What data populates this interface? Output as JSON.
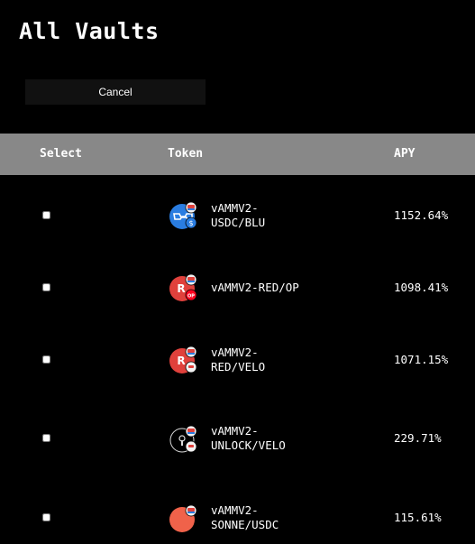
{
  "page": {
    "title": "All Vaults"
  },
  "actions": {
    "cancel_label": "Cancel"
  },
  "table": {
    "headers": {
      "select": "Select",
      "token": "Token",
      "apy": "APY"
    },
    "rows": [
      {
        "token": "vAMMV2-\nUSDC/BLU",
        "apy": "1152.64%",
        "icon": "usdc-blu-pair-icon",
        "primary_color": "#2a7de1",
        "secondary_color": "#2a7de1",
        "checked": false
      },
      {
        "token": "vAMMV2-RED/OP",
        "apy": "1098.41%",
        "icon": "red-op-pair-icon",
        "primary_color": "#e0413c",
        "secondary_color": "#ff0420",
        "checked": false
      },
      {
        "token": "vAMMV2-\nRED/VELO",
        "apy": "1071.15%",
        "icon": "red-velo-pair-icon",
        "primary_color": "#e0413c",
        "secondary_color": "#f2f2f2",
        "checked": false
      },
      {
        "token": "vAMMV2-\nUNLOCK/VELO",
        "apy": "229.71%",
        "icon": "unlock-velo-pair-icon",
        "primary_color": "#000000",
        "secondary_color": "#f2f2f2",
        "checked": false
      },
      {
        "token": "vAMMV2-\nSONNE/USDC",
        "apy": "115.61%",
        "icon": "sonne-usdc-pair-icon",
        "primary_color": "#f0624a",
        "secondary_color": "#2a7de1",
        "checked": false
      }
    ]
  }
}
